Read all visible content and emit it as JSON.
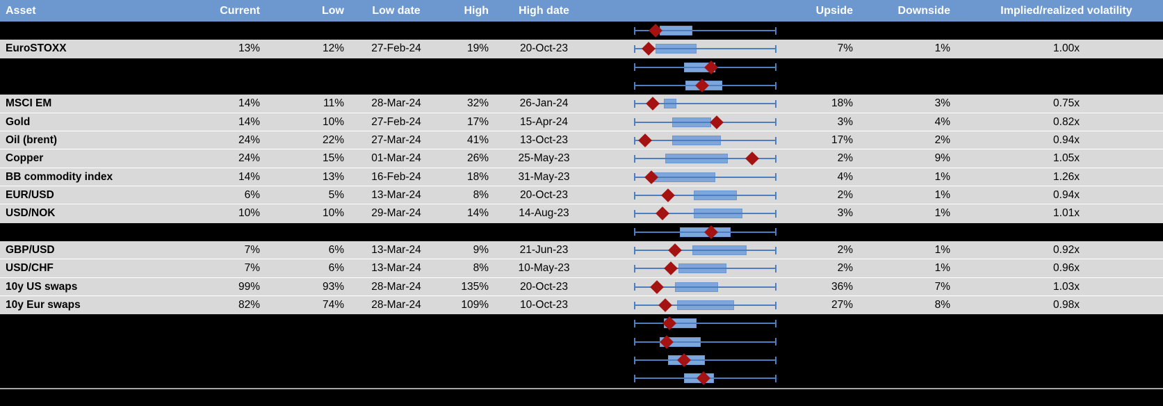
{
  "header": {
    "columns": [
      "Asset",
      "Current",
      "Low",
      "Low date",
      "High",
      "High date",
      "",
      "Upside",
      "Downside",
      "Implied/realized volatility"
    ]
  },
  "colors": {
    "header_bg": "#6c97cf",
    "header_text": "#ffffff",
    "row_bg": "#d9d9d9",
    "hidden_row_bg": "#000000",
    "text": "#000000",
    "box_fill": "#7ea6da",
    "box_border": "#6c98d2",
    "whisker": "#4d7fc0",
    "diamond": "#a51212",
    "bottom_separator": "#a6a6a6",
    "gridline": "#ffffff"
  },
  "rows": [
    {
      "type": "hidden",
      "plot": {
        "whisker": [
          0,
          1
        ],
        "box": [
          0.18,
          0.41
        ],
        "diamond": 0.15
      }
    },
    {
      "type": "data",
      "asset": "EuroSTOXX",
      "current": "13%",
      "low": "12%",
      "low_date": "27-Feb-24",
      "high": "19%",
      "high_date": "20-Oct-23",
      "upside": "7%",
      "downside": "1%",
      "impl_real": "1.00x",
      "plot": {
        "whisker": [
          0,
          1
        ],
        "box": [
          0.15,
          0.44
        ],
        "diamond": 0.1
      }
    },
    {
      "type": "hidden",
      "plot": {
        "whisker": [
          0,
          1
        ],
        "box": [
          0.35,
          0.57
        ],
        "diamond": 0.54
      }
    },
    {
      "type": "hidden",
      "plot": {
        "whisker": [
          0,
          1
        ],
        "box": [
          0.36,
          0.62
        ],
        "diamond": 0.48
      }
    },
    {
      "type": "data",
      "asset": "MSCI EM",
      "current": "14%",
      "low": "11%",
      "low_date": "28-Mar-24",
      "high": "32%",
      "high_date": "26-Jan-24",
      "upside": "18%",
      "downside": "3%",
      "impl_real": "0.75x",
      "plot": {
        "whisker": [
          0,
          1
        ],
        "box": [
          0.21,
          0.3
        ],
        "diamond": 0.13
      }
    },
    {
      "type": "data",
      "asset": "Gold",
      "current": "14%",
      "low": "10%",
      "low_date": "27-Feb-24",
      "high": "17%",
      "high_date": "15-Apr-24",
      "upside": "3%",
      "downside": "4%",
      "impl_real": "0.82x",
      "plot": {
        "whisker": [
          0,
          1
        ],
        "box": [
          0.27,
          0.54
        ],
        "diamond": 0.58
      }
    },
    {
      "type": "data",
      "asset": "Oil (brent)",
      "current": "24%",
      "low": "22%",
      "low_date": "27-Mar-24",
      "high": "41%",
      "high_date": "13-Oct-23",
      "upside": "17%",
      "downside": "2%",
      "impl_real": "0.94x",
      "plot": {
        "whisker": [
          0,
          1
        ],
        "box": [
          0.27,
          0.61
        ],
        "diamond": 0.08
      }
    },
    {
      "type": "data",
      "asset": "Copper",
      "current": "24%",
      "low": "15%",
      "low_date": "01-Mar-24",
      "high": "26%",
      "high_date": "25-May-23",
      "upside": "2%",
      "downside": "9%",
      "impl_real": "1.05x",
      "plot": {
        "whisker": [
          0,
          1
        ],
        "box": [
          0.22,
          0.66
        ],
        "diamond": 0.83
      }
    },
    {
      "type": "data",
      "asset": "BB commodity index",
      "current": "14%",
      "low": "13%",
      "low_date": "16-Feb-24",
      "high": "18%",
      "high_date": "31-May-23",
      "upside": "4%",
      "downside": "1%",
      "impl_real": "1.26x",
      "plot": {
        "whisker": [
          0,
          1
        ],
        "box": [
          0.12,
          0.57
        ],
        "diamond": 0.12
      }
    },
    {
      "type": "data",
      "asset": "EUR/USD",
      "current": "6%",
      "low": "5%",
      "low_date": "13-Mar-24",
      "high": "8%",
      "high_date": "20-Oct-23",
      "upside": "2%",
      "downside": "1%",
      "impl_real": "0.94x",
      "plot": {
        "whisker": [
          0,
          1
        ],
        "box": [
          0.42,
          0.72
        ],
        "diamond": 0.24
      }
    },
    {
      "type": "data",
      "asset": "USD/NOK",
      "current": "10%",
      "low": "10%",
      "low_date": "29-Mar-24",
      "high": "14%",
      "high_date": "14-Aug-23",
      "upside": "3%",
      "downside": "1%",
      "impl_real": "1.01x",
      "plot": {
        "whisker": [
          0,
          1
        ],
        "box": [
          0.42,
          0.76
        ],
        "diamond": 0.2
      }
    },
    {
      "type": "hidden",
      "plot": {
        "whisker": [
          0,
          1
        ],
        "box": [
          0.32,
          0.68
        ],
        "diamond": 0.54
      }
    },
    {
      "type": "data",
      "asset": "GBP/USD",
      "current": "7%",
      "low": "6%",
      "low_date": "13-Mar-24",
      "high": "9%",
      "high_date": "21-Jun-23",
      "upside": "2%",
      "downside": "1%",
      "impl_real": "0.92x",
      "plot": {
        "whisker": [
          0,
          1
        ],
        "box": [
          0.41,
          0.79
        ],
        "diamond": 0.29
      }
    },
    {
      "type": "data",
      "asset": "USD/CHF",
      "current": "7%",
      "low": "6%",
      "low_date": "13-Mar-24",
      "high": "8%",
      "high_date": "10-May-23",
      "upside": "2%",
      "downside": "1%",
      "impl_real": "0.96x",
      "plot": {
        "whisker": [
          0,
          1
        ],
        "box": [
          0.31,
          0.65
        ],
        "diamond": 0.26
      }
    },
    {
      "type": "data",
      "asset": "10y US swaps",
      "current": "99%",
      "low": "93%",
      "low_date": "28-Mar-24",
      "high": "135%",
      "high_date": "20-Oct-23",
      "upside": "36%",
      "downside": "7%",
      "impl_real": "1.03x",
      "plot": {
        "whisker": [
          0,
          1
        ],
        "box": [
          0.29,
          0.59
        ],
        "diamond": 0.16
      }
    },
    {
      "type": "data",
      "asset": "10y Eur swaps",
      "current": "82%",
      "low": "74%",
      "low_date": "28-Mar-24",
      "high": "109%",
      "high_date": "10-Oct-23",
      "upside": "27%",
      "downside": "8%",
      "impl_real": "0.98x",
      "plot": {
        "whisker": [
          0,
          1
        ],
        "box": [
          0.3,
          0.7
        ],
        "diamond": 0.22
      }
    },
    {
      "type": "hidden",
      "plot": {
        "whisker": [
          0,
          1
        ],
        "box": [
          0.21,
          0.44
        ],
        "diamond": 0.25
      }
    },
    {
      "type": "hidden",
      "plot": {
        "whisker": [
          0,
          1
        ],
        "box": [
          0.18,
          0.47
        ],
        "diamond": 0.23
      }
    },
    {
      "type": "hidden",
      "plot": {
        "whisker": [
          0,
          1
        ],
        "box": [
          0.24,
          0.5
        ],
        "diamond": 0.35
      }
    },
    {
      "type": "hidden",
      "plot": {
        "whisker": [
          0,
          1
        ],
        "box": [
          0.35,
          0.56
        ],
        "diamond": 0.49
      }
    },
    {
      "type": "filler"
    }
  ],
  "chart_data": {
    "type": "boxplot",
    "orientation": "horizontal",
    "title": "Implied volatility ranges per asset (whisker = low-to-high range over period, red diamond = current level, normalized 0-1 per row)",
    "x_range_normalized": [
      0,
      1
    ],
    "legend_position": "none",
    "grid": false,
    "rows": [
      {
        "label": "",
        "whisker": [
          0,
          1
        ],
        "box": [
          0.18,
          0.41
        ],
        "diamond": 0.15
      },
      {
        "label": "EuroSTOXX",
        "current_pct": 13,
        "low_pct": 12,
        "high_pct": 19,
        "whisker": [
          0,
          1
        ],
        "box": [
          0.15,
          0.44
        ],
        "diamond": 0.1
      },
      {
        "label": "",
        "whisker": [
          0,
          1
        ],
        "box": [
          0.35,
          0.57
        ],
        "diamond": 0.54
      },
      {
        "label": "",
        "whisker": [
          0,
          1
        ],
        "box": [
          0.36,
          0.62
        ],
        "diamond": 0.48
      },
      {
        "label": "MSCI EM",
        "current_pct": 14,
        "low_pct": 11,
        "high_pct": 32,
        "whisker": [
          0,
          1
        ],
        "box": [
          0.21,
          0.3
        ],
        "diamond": 0.13
      },
      {
        "label": "Gold",
        "current_pct": 14,
        "low_pct": 10,
        "high_pct": 17,
        "whisker": [
          0,
          1
        ],
        "box": [
          0.27,
          0.54
        ],
        "diamond": 0.58
      },
      {
        "label": "Oil (brent)",
        "current_pct": 24,
        "low_pct": 22,
        "high_pct": 41,
        "whisker": [
          0,
          1
        ],
        "box": [
          0.27,
          0.61
        ],
        "diamond": 0.08
      },
      {
        "label": "Copper",
        "current_pct": 24,
        "low_pct": 15,
        "high_pct": 26,
        "whisker": [
          0,
          1
        ],
        "box": [
          0.22,
          0.66
        ],
        "diamond": 0.83
      },
      {
        "label": "BB commodity index",
        "current_pct": 14,
        "low_pct": 13,
        "high_pct": 18,
        "whisker": [
          0,
          1
        ],
        "box": [
          0.12,
          0.57
        ],
        "diamond": 0.12
      },
      {
        "label": "EUR/USD",
        "current_pct": 6,
        "low_pct": 5,
        "high_pct": 8,
        "whisker": [
          0,
          1
        ],
        "box": [
          0.42,
          0.72
        ],
        "diamond": 0.24
      },
      {
        "label": "USD/NOK",
        "current_pct": 10,
        "low_pct": 10,
        "high_pct": 14,
        "whisker": [
          0,
          1
        ],
        "box": [
          0.42,
          0.76
        ],
        "diamond": 0.2
      },
      {
        "label": "",
        "whisker": [
          0,
          1
        ],
        "box": [
          0.32,
          0.68
        ],
        "diamond": 0.54
      },
      {
        "label": "GBP/USD",
        "current_pct": 7,
        "low_pct": 6,
        "high_pct": 9,
        "whisker": [
          0,
          1
        ],
        "box": [
          0.41,
          0.79
        ],
        "diamond": 0.29
      },
      {
        "label": "USD/CHF",
        "current_pct": 7,
        "low_pct": 6,
        "high_pct": 8,
        "whisker": [
          0,
          1
        ],
        "box": [
          0.31,
          0.65
        ],
        "diamond": 0.26
      },
      {
        "label": "10y US swaps",
        "current_pct": 99,
        "low_pct": 93,
        "high_pct": 135,
        "whisker": [
          0,
          1
        ],
        "box": [
          0.29,
          0.59
        ],
        "diamond": 0.16
      },
      {
        "label": "10y Eur swaps",
        "current_pct": 82,
        "low_pct": 74,
        "high_pct": 109,
        "whisker": [
          0,
          1
        ],
        "box": [
          0.3,
          0.7
        ],
        "diamond": 0.22
      },
      {
        "label": "",
        "whisker": [
          0,
          1
        ],
        "box": [
          0.21,
          0.44
        ],
        "diamond": 0.25
      },
      {
        "label": "",
        "whisker": [
          0,
          1
        ],
        "box": [
          0.18,
          0.47
        ],
        "diamond": 0.23
      },
      {
        "label": "",
        "whisker": [
          0,
          1
        ],
        "box": [
          0.24,
          0.5
        ],
        "diamond": 0.35
      },
      {
        "label": "",
        "whisker": [
          0,
          1
        ],
        "box": [
          0.35,
          0.56
        ],
        "diamond": 0.49
      }
    ]
  }
}
